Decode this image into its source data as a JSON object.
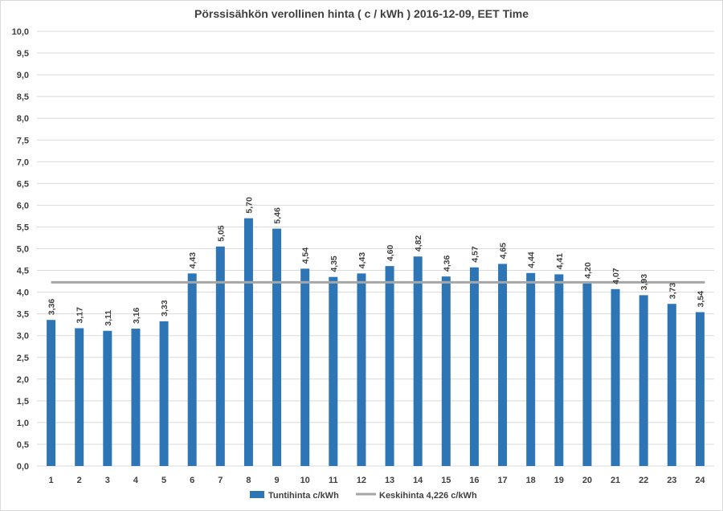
{
  "chart_data": {
    "type": "bar",
    "title": "Pörssisähkön verollinen hinta ( c / kWh ) 2016-12-09, EET Time",
    "categories": [
      "1",
      "2",
      "3",
      "4",
      "5",
      "6",
      "7",
      "8",
      "9",
      "10",
      "11",
      "12",
      "13",
      "14",
      "15",
      "16",
      "17",
      "18",
      "19",
      "20",
      "21",
      "22",
      "23",
      "24"
    ],
    "series": [
      {
        "name": "Tuntihinta c/kWh",
        "type": "bar",
        "color": "#2e75b6",
        "values": [
          3.36,
          3.17,
          3.11,
          3.16,
          3.33,
          4.43,
          5.05,
          5.7,
          5.46,
          4.54,
          4.35,
          4.43,
          4.6,
          4.82,
          4.36,
          4.57,
          4.65,
          4.44,
          4.41,
          4.2,
          4.07,
          3.93,
          3.73,
          3.54
        ],
        "labels": [
          "3,36",
          "3,17",
          "3,11",
          "3,16",
          "3,33",
          "4,43",
          "5,05",
          "5,70",
          "5,46",
          "4,54",
          "4,35",
          "4,43",
          "4,60",
          "4,82",
          "4,36",
          "4,57",
          "4,65",
          "4,44",
          "4,41",
          "4,20",
          "4,07",
          "3,93",
          "3,73",
          "3,54"
        ]
      },
      {
        "name": "Keskihinta 4,226 c/kWh",
        "type": "line",
        "color": "#a6a6a6",
        "value": 4.226
      }
    ],
    "ylim": [
      0,
      10
    ],
    "yticks": [
      "0,0",
      "0,5",
      "1,0",
      "1,5",
      "2,0",
      "2,5",
      "3,0",
      "3,5",
      "4,0",
      "4,5",
      "5,0",
      "5,5",
      "6,0",
      "6,5",
      "7,0",
      "7,5",
      "8,0",
      "8,5",
      "9,0",
      "9,5",
      "10,0"
    ],
    "xlabel": "",
    "ylabel": "",
    "grid": true,
    "legend": "bottom"
  }
}
